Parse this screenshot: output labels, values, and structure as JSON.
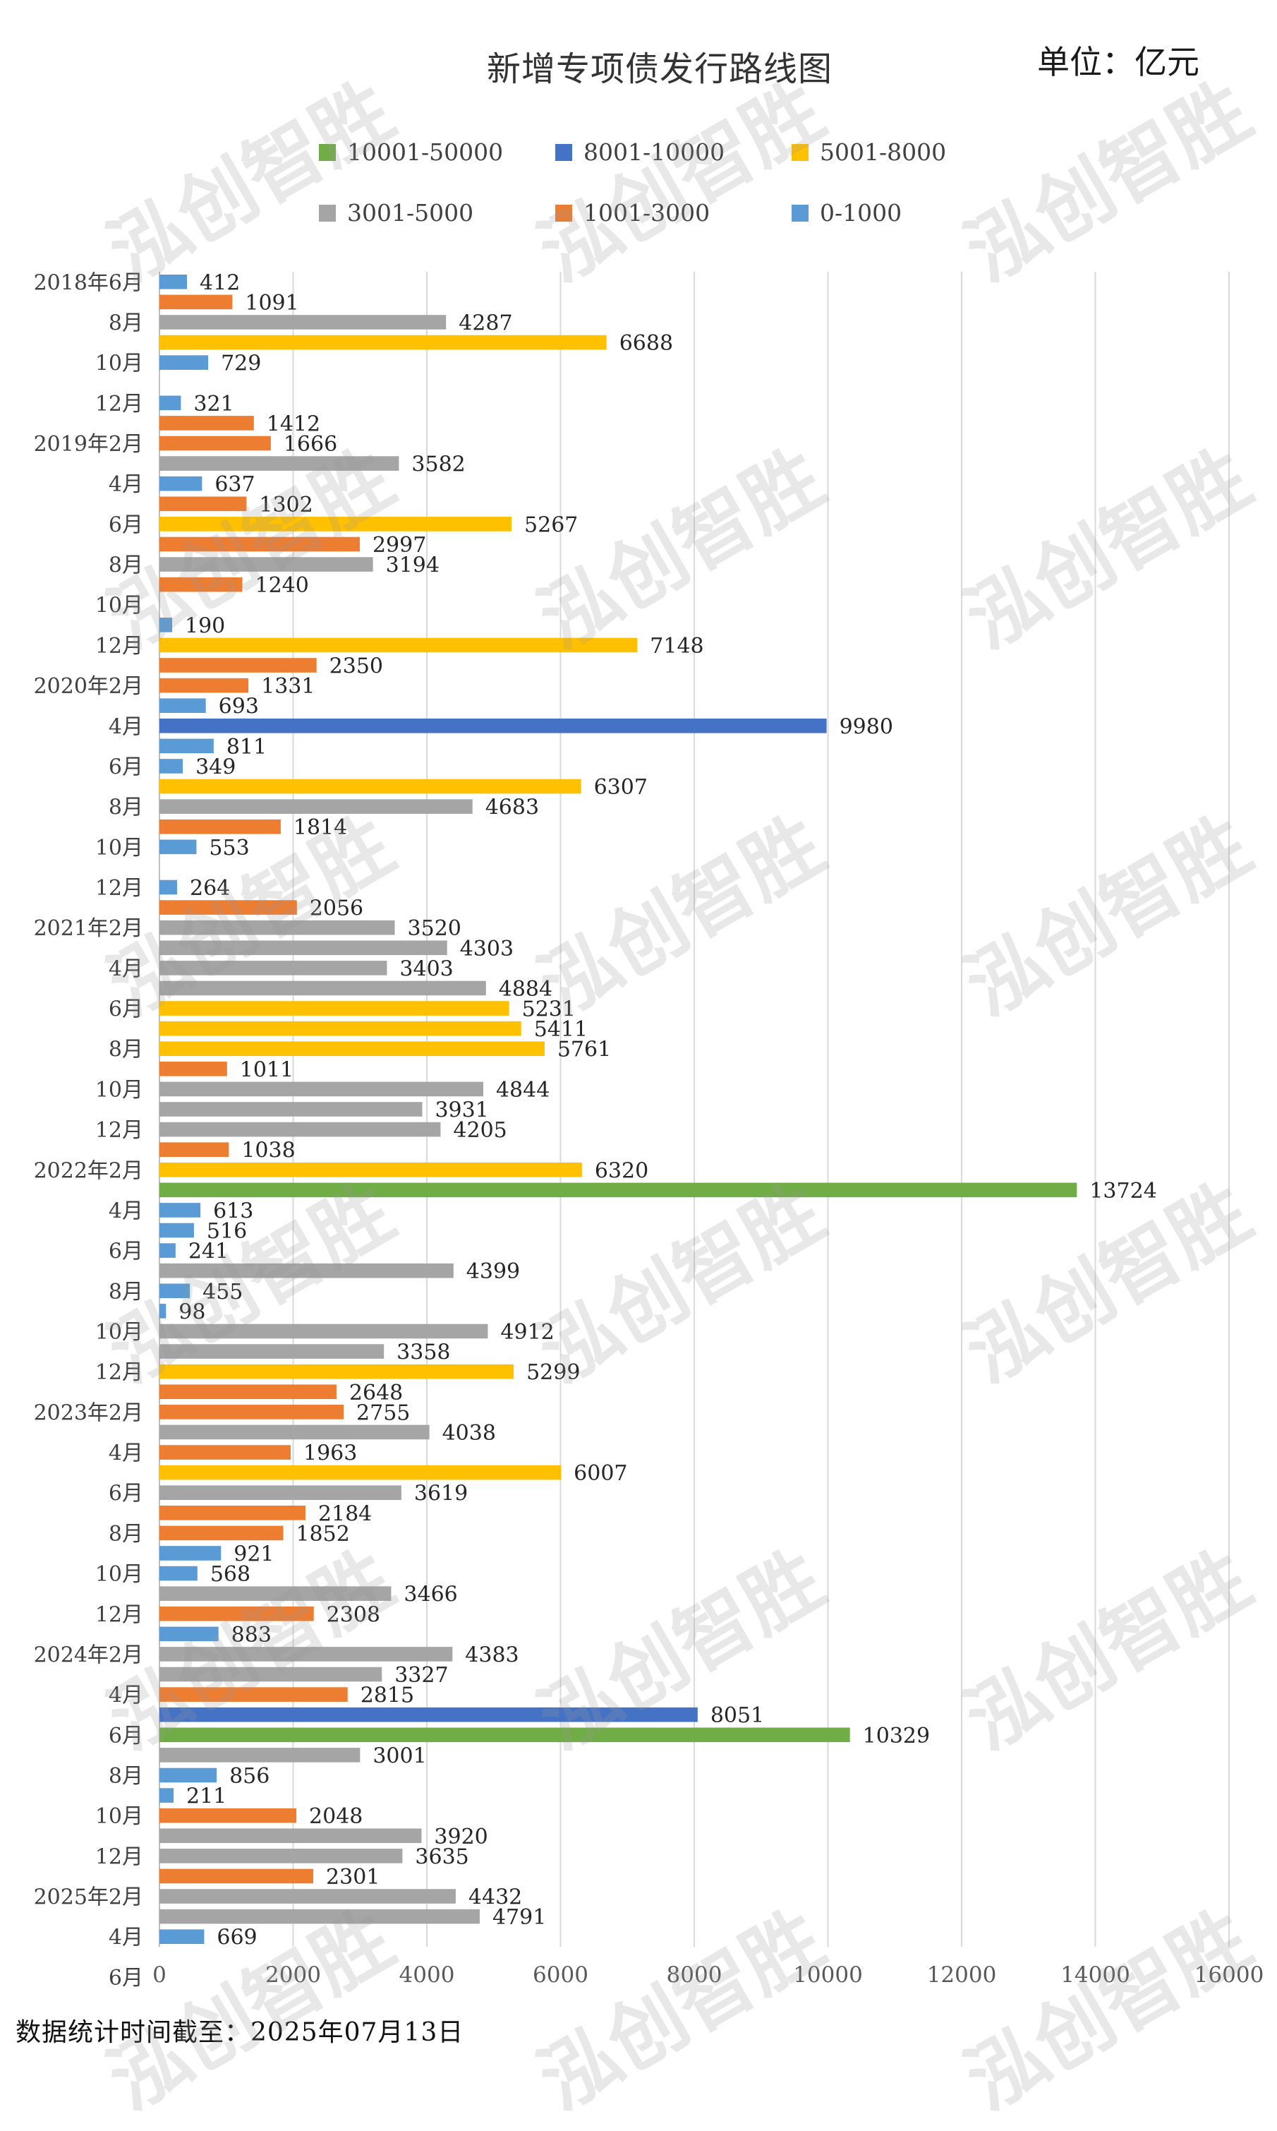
{
  "title": "新增专项债发行路线图",
  "unit": "单位：亿元",
  "footnote": "数据统计时间截至：2025年07月13日",
  "watermark": "泓创智胜",
  "legend": [
    {
      "label": "10001-50000",
      "color": "#70AD47"
    },
    {
      "label": "8001-10000",
      "color": "#4472C4"
    },
    {
      "label": "5001-8000",
      "color": "#FFC000"
    },
    {
      "label": "3001-5000",
      "color": "#A5A5A5"
    },
    {
      "label": "1001-3000",
      "color": "#ED7D31"
    },
    {
      "label": "0-1000",
      "color": "#5B9BD5"
    }
  ],
  "chart_data": {
    "type": "bar",
    "orientation": "horizontal",
    "xlim": [
      0,
      16000
    ],
    "xticks": [
      0,
      2000,
      4000,
      6000,
      8000,
      10000,
      12000,
      14000,
      16000
    ],
    "grid": true,
    "legend_position": "top",
    "color_by_value_range": [
      {
        "min": 10001,
        "max": 50000,
        "color": "#70AD47"
      },
      {
        "min": 8001,
        "max": 10000,
        "color": "#4472C4"
      },
      {
        "min": 5001,
        "max": 8000,
        "color": "#FFC000"
      },
      {
        "min": 3001,
        "max": 5000,
        "color": "#A5A5A5"
      },
      {
        "min": 1001,
        "max": 3000,
        "color": "#ED7D31"
      },
      {
        "min": 0,
        "max": 1000,
        "color": "#5B9BD5"
      }
    ],
    "category_labels": [
      "2018年6月",
      "8月",
      "10月",
      "12月",
      "2019年2月",
      "4月",
      "6月",
      "8月",
      "10月",
      "12月",
      "2020年2月",
      "4月",
      "6月",
      "8月",
      "10月",
      "12月",
      "2021年2月",
      "4月",
      "6月",
      "8月",
      "10月",
      "12月",
      "2022年2月",
      "4月",
      "6月",
      "8月",
      "10月",
      "12月",
      "2023年2月",
      "4月",
      "6月",
      "8月",
      "10月",
      "12月",
      "2024年2月",
      "4月",
      "6月",
      "8月",
      "10月",
      "12月",
      "2025年2月",
      "4月",
      "6月"
    ],
    "values": [
      412,
      1091,
      4287,
      6688,
      729,
      null,
      321,
      1412,
      1666,
      3582,
      637,
      1302,
      5267,
      2997,
      3194,
      1240,
      null,
      190,
      7148,
      2350,
      1331,
      693,
      9980,
      811,
      349,
      6307,
      4683,
      1814,
      553,
      null,
      264,
      2056,
      3520,
      4303,
      3403,
      4884,
      5231,
      5411,
      5761,
      1011,
      4844,
      3931,
      4205,
      1038,
      6320,
      13724,
      613,
      516,
      241,
      4399,
      455,
      98,
      4912,
      3358,
      5299,
      2648,
      2755,
      4038,
      1963,
      6007,
      3619,
      2184,
      1852,
      921,
      568,
      3466,
      2308,
      883,
      4383,
      3327,
      2815,
      8051,
      10329,
      3001,
      856,
      211,
      2048,
      3920,
      3635,
      2301,
      4432,
      4791,
      669
    ]
  }
}
